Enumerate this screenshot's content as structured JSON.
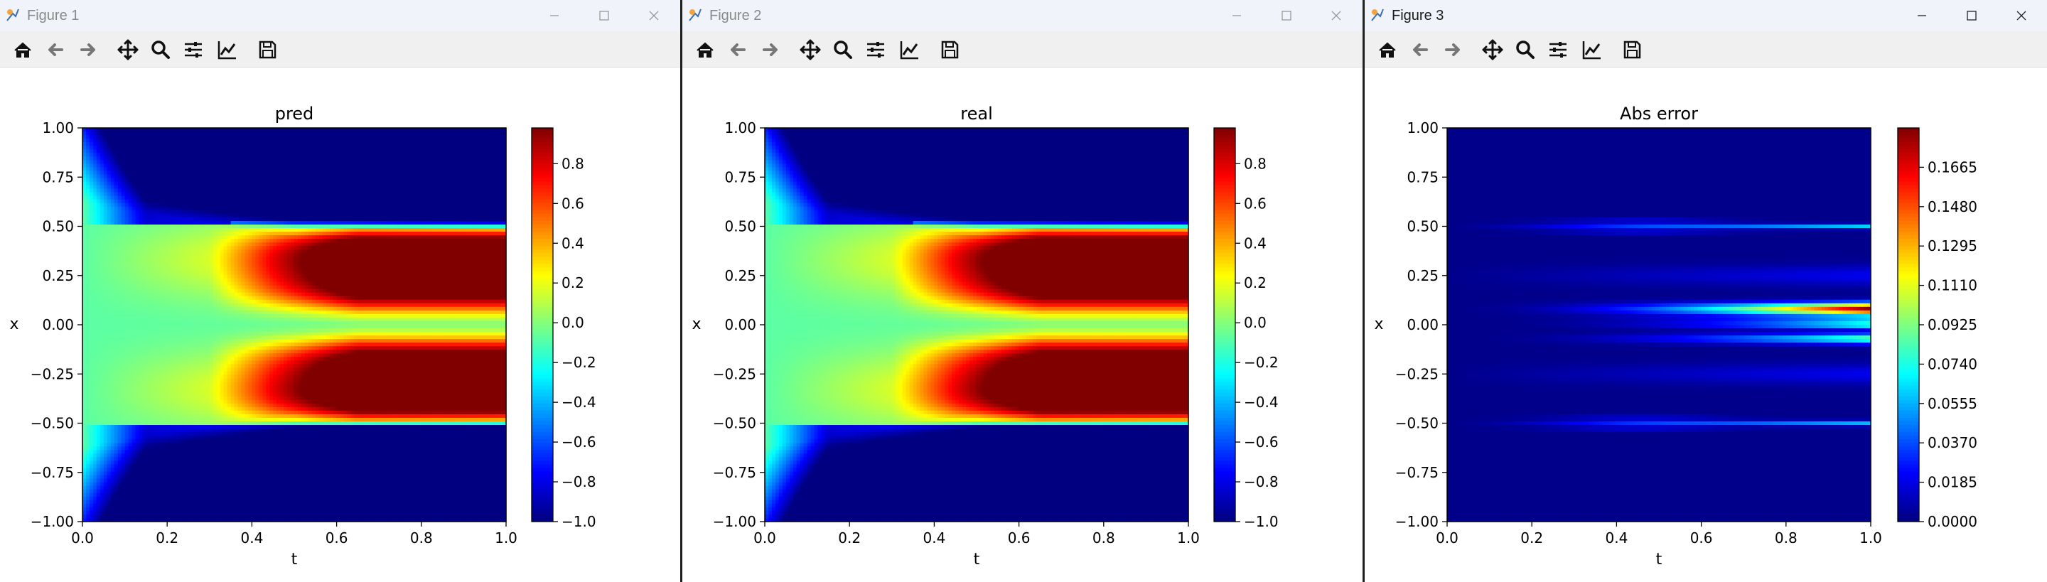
{
  "windows": [
    {
      "title": "Figure 1",
      "active": false,
      "plot": {
        "title": "pred",
        "xlabel": "t",
        "ylabel": "x",
        "xticks": [
          "0.0",
          "0.2",
          "0.4",
          "0.6",
          "0.8",
          "1.0"
        ],
        "yticks": [
          "1.00",
          "0.75",
          "0.50",
          "0.25",
          "0.00",
          "−0.25",
          "−0.50",
          "−0.75",
          "−1.00"
        ],
        "colorbar_ticks": [
          "0.8",
          "0.6",
          "0.4",
          "0.2",
          "0.0",
          "−0.2",
          "−0.4",
          "−0.6",
          "−0.8",
          "−1.0"
        ],
        "colorbar_ticks_values": [
          0.8,
          0.6,
          0.4,
          0.2,
          0.0,
          -0.2,
          -0.4,
          -0.6,
          -0.8,
          -1.0
        ],
        "colorbar_range": [
          -1.0,
          0.98
        ]
      }
    },
    {
      "title": "Figure 2",
      "active": false,
      "plot": {
        "title": "real",
        "xlabel": "t",
        "ylabel": "x",
        "xticks": [
          "0.0",
          "0.2",
          "0.4",
          "0.6",
          "0.8",
          "1.0"
        ],
        "yticks": [
          "1.00",
          "0.75",
          "0.50",
          "0.25",
          "0.00",
          "−0.25",
          "−0.50",
          "−0.75",
          "−1.00"
        ],
        "colorbar_ticks": [
          "0.8",
          "0.6",
          "0.4",
          "0.2",
          "0.0",
          "−0.2",
          "−0.4",
          "−0.6",
          "−0.8",
          "−1.0"
        ],
        "colorbar_ticks_values": [
          0.8,
          0.6,
          0.4,
          0.2,
          0.0,
          -0.2,
          -0.4,
          -0.6,
          -0.8,
          -1.0
        ],
        "colorbar_range": [
          -1.0,
          0.98
        ]
      }
    },
    {
      "title": "Figure 3",
      "active": true,
      "plot": {
        "title": "Abs error",
        "xlabel": "t",
        "ylabel": "x",
        "xticks": [
          "0.0",
          "0.2",
          "0.4",
          "0.6",
          "0.8",
          "1.0"
        ],
        "yticks": [
          "1.00",
          "0.75",
          "0.50",
          "0.25",
          "0.00",
          "−0.25",
          "−0.50",
          "−0.75",
          "−1.00"
        ],
        "colorbar_ticks": [
          "0.1665",
          "0.1480",
          "0.1295",
          "0.1110",
          "0.0925",
          "0.0740",
          "0.0555",
          "0.0370",
          "0.0185",
          "0.0000"
        ],
        "colorbar_ticks_values": [
          0.1665,
          0.148,
          0.1295,
          0.111,
          0.0925,
          0.074,
          0.0555,
          0.037,
          0.0185,
          0.0
        ],
        "colorbar_range": [
          0.0,
          0.185
        ]
      }
    }
  ],
  "toolbar": {
    "buttons": [
      "home-icon",
      "back-icon",
      "forward-icon",
      "pan-icon",
      "zoom-icon",
      "configure-subplots-icon",
      "edit-axis-icon",
      "save-icon"
    ]
  },
  "colormap": "jet",
  "colors": {
    "titlebar_bg": "#f0f3f9",
    "toolbar_bg": "#f0f0f0",
    "low": "#00007f",
    "high": "#7f0000"
  }
}
